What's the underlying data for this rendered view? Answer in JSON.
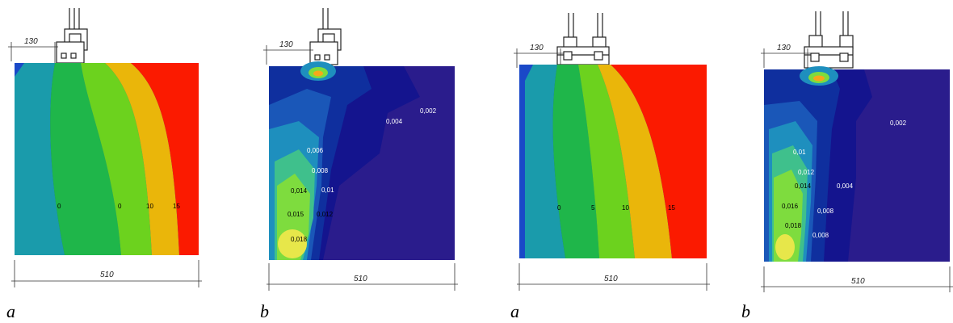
{
  "panels": [
    {
      "id": "p1",
      "kind": "temperature",
      "caption": "a",
      "top_dimension": "130",
      "bottom_dimension": "510",
      "colors": [
        "#1a49c8",
        "#1a9bab",
        "#1fb64a",
        "#6cd21e",
        "#eab60a",
        "#fb1a00"
      ],
      "labels": [
        "0",
        "0",
        "10",
        "15"
      ]
    },
    {
      "id": "p2",
      "kind": "humidity",
      "caption": "b",
      "top_dimension": "130",
      "bottom_dimension": "510",
      "colors": [
        "#2a1c8c",
        "#14148e",
        "#0f2f9e",
        "#1a57b8",
        "#1e8fbe",
        "#3fc08c",
        "#7edc3e",
        "#e7e74a"
      ],
      "labels": [
        "0,002",
        "0,004",
        "0,006",
        "0,008",
        "0,014",
        "0,01",
        "0,015",
        "0,012",
        "0,018"
      ]
    },
    {
      "id": "p3",
      "kind": "temperature",
      "caption": "a",
      "top_dimension": "130",
      "bottom_dimension": "510",
      "colors": [
        "#1a49c8",
        "#1a9bab",
        "#1fb64a",
        "#6cd21e",
        "#eab60a",
        "#fb1a00"
      ],
      "labels": [
        "0",
        "5",
        "10",
        "15"
      ]
    },
    {
      "id": "p4",
      "kind": "humidity",
      "caption": "b",
      "top_dimension": "130",
      "bottom_dimension": "510",
      "colors": [
        "#2a1c8c",
        "#14148e",
        "#0f2f9e",
        "#1a57b8",
        "#1e8fbe",
        "#3fc08c",
        "#7edc3e",
        "#e7e74a"
      ],
      "labels": [
        "0,002",
        "0,01",
        "0,012",
        "0,014",
        "0,004",
        "0,016",
        "0,008",
        "0,018",
        "0,008"
      ]
    }
  ]
}
